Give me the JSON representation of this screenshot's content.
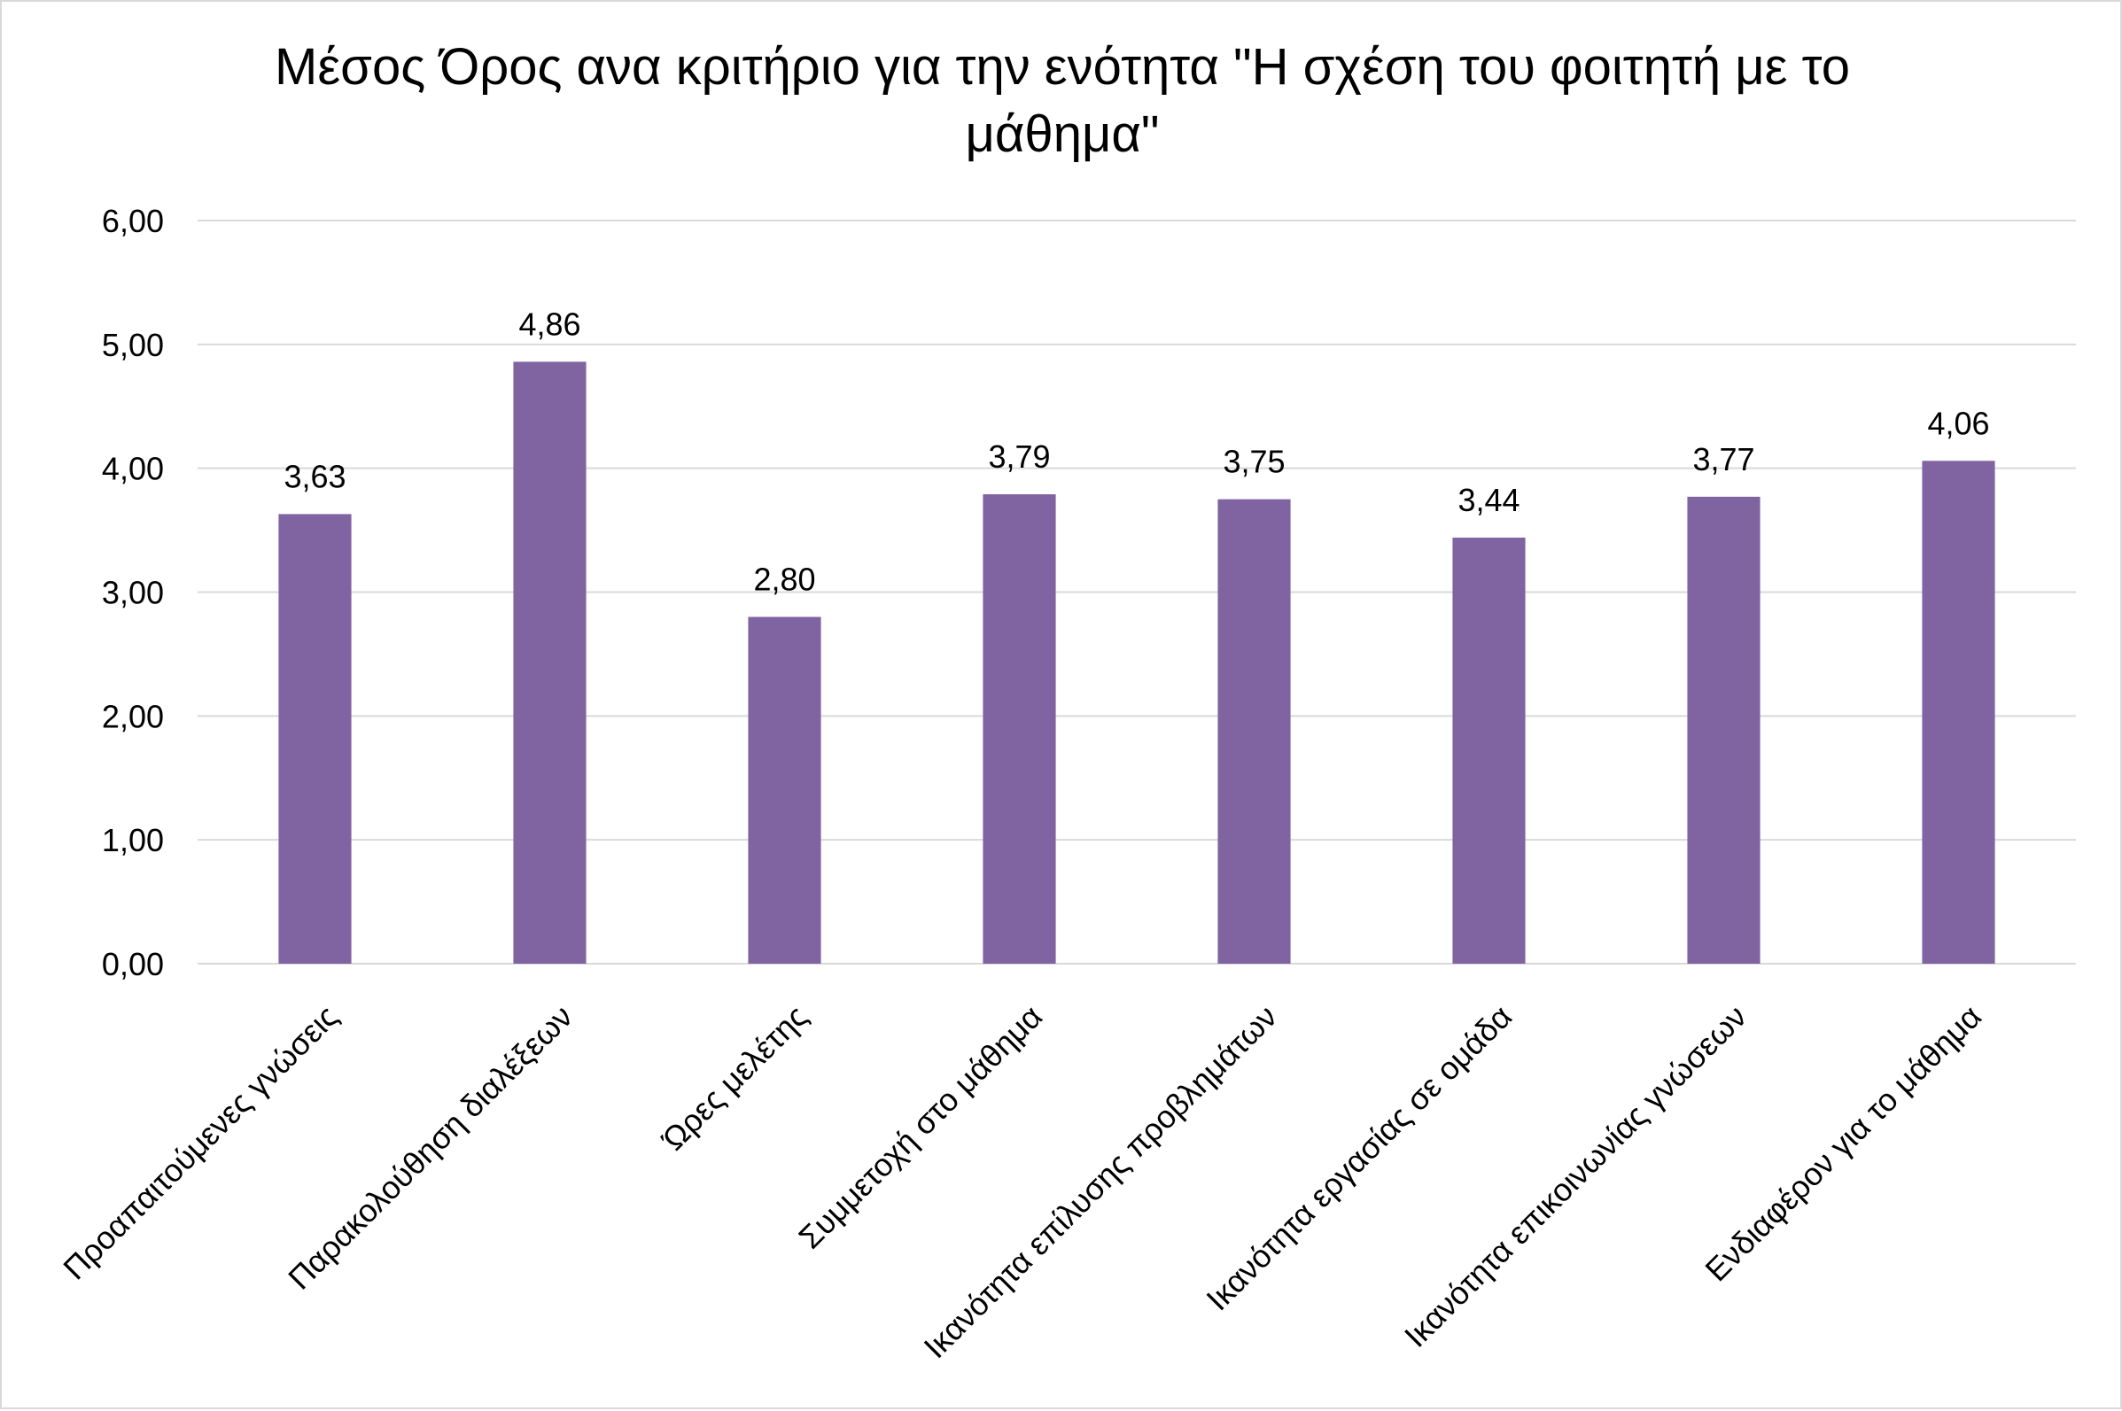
{
  "chart_data": {
    "type": "bar",
    "title": "Μέσος Όρος ανα κριτήριο για την ενότητα \"Η σχέση του φοιτητή με το μάθημα\"",
    "xlabel": "",
    "ylabel": "",
    "categories": [
      "Προαπαιτούμενες γνώσεις",
      "Παρακολούθηση διαλέξεων",
      "Ώρες μελέτης",
      "Συμμετοχή στο μάθημα",
      "Ικανότητα επίλυσης προβλημάτων",
      "Ικανότητα εργασίας σε ομάδα",
      "Ικανότητα επικοινωνίας γνώσεων",
      "Ενδιαφέρον για το μάθημα"
    ],
    "values": [
      3.63,
      4.86,
      2.8,
      3.79,
      3.75,
      3.44,
      3.77,
      4.06
    ],
    "data_labels": [
      "3,63",
      "4,86",
      "2,80",
      "3,79",
      "3,75",
      "3,44",
      "3,77",
      "4,06"
    ],
    "ylim": [
      0,
      6
    ],
    "ytick_values": [
      0,
      1,
      2,
      3,
      4,
      5,
      6
    ],
    "ytick_labels": [
      "0,00",
      "1,00",
      "2,00",
      "3,00",
      "4,00",
      "5,00",
      "6,00"
    ],
    "grid": true,
    "legend": "none",
    "bar_color": "#8064A2",
    "grid_color": "#D9D9D9"
  }
}
